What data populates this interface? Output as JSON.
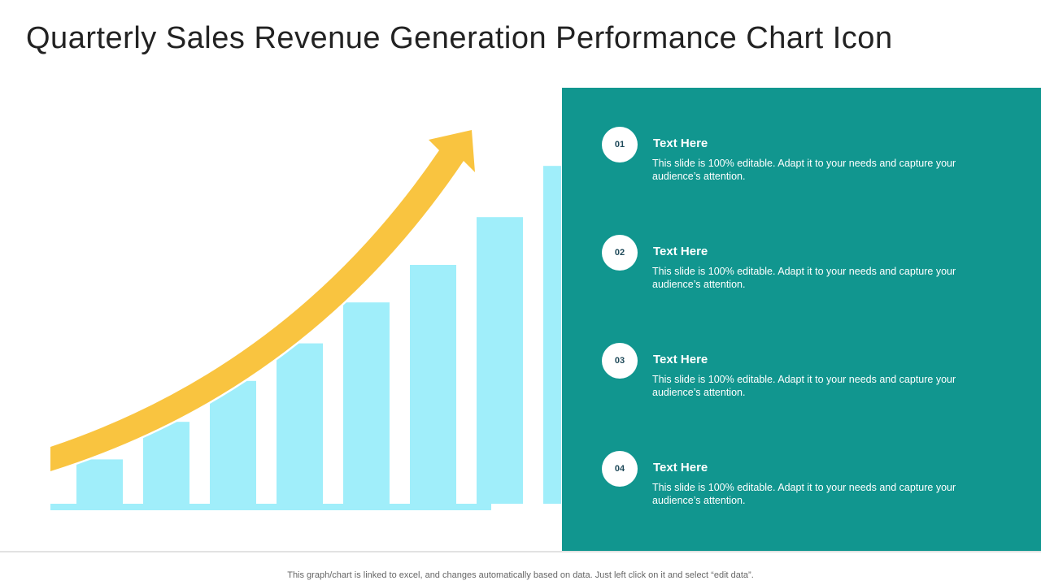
{
  "title": "Quarterly Sales Revenue Generation Performance Chart Icon",
  "colors": {
    "panel": "#11968f",
    "bars": "#a0eefa",
    "arrow": "#f9c440",
    "baseline": "#a0eefa"
  },
  "graphic": {
    "type": "bar",
    "bar_heights": [
      0.13,
      0.24,
      0.36,
      0.47,
      0.59,
      0.7,
      0.84,
      0.99
    ]
  },
  "items": [
    {
      "number": "01",
      "title": "Text Here",
      "text": "This slide is 100% editable. Adapt it to your needs and capture your audience’s attention."
    },
    {
      "number": "02",
      "title": "Text Here",
      "text": "This slide is 100% editable. Adapt it to your needs and capture your audience’s attention."
    },
    {
      "number": "03",
      "title": "Text Here",
      "text": "This slide is 100% editable. Adapt it to your needs and capture your audience’s attention."
    },
    {
      "number": "04",
      "title": "Text Here",
      "text": "This slide is 100% editable. Adapt it to your needs and capture your audience’s attention."
    }
  ],
  "footer": "This graph/chart is linked to excel, and changes automatically based on data. Just left click on it and select “edit data”."
}
